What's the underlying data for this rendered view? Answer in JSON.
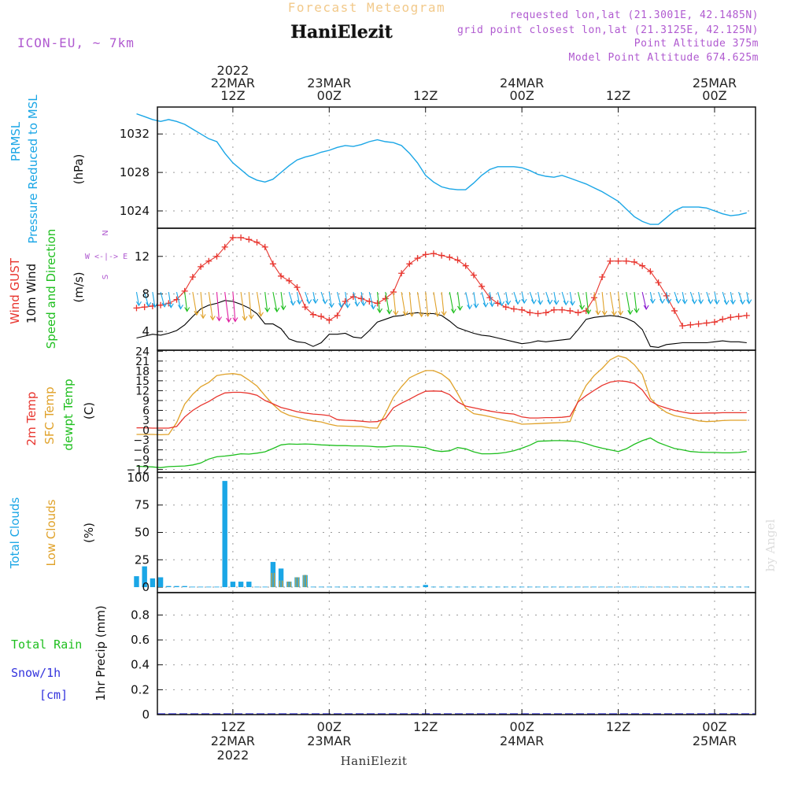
{
  "header": {
    "title_top": "Forecast Meteogram",
    "location": "HaniElezit",
    "model": "ICON-EU, ~ 7km",
    "requested": "requested lon,lat (21.3001E, 42.1485N)",
    "grid_point": "grid point closest lon,lat (21.3125E, 42.125N)",
    "point_altitude": "Point Altitude 375m",
    "model_altitude": "Model Point Altitude 674.625m"
  },
  "time_axis": {
    "top_labels": [
      {
        "t": 12,
        "lines": [
          "2022",
          "22MAR",
          "12Z"
        ]
      },
      {
        "t": 24,
        "lines": [
          "23MAR",
          "00Z"
        ]
      },
      {
        "t": 36,
        "lines": [
          "12Z"
        ]
      },
      {
        "t": 48,
        "lines": [
          "24MAR",
          "00Z"
        ]
      },
      {
        "t": 60,
        "lines": [
          "12Z"
        ]
      },
      {
        "t": 72,
        "lines": [
          "25MAR",
          "00Z"
        ]
      }
    ],
    "bottom_labels": [
      {
        "t": 12,
        "lines": [
          "12Z",
          "22MAR",
          "2022"
        ]
      },
      {
        "t": 24,
        "lines": [
          "00Z",
          "23MAR"
        ]
      },
      {
        "t": 36,
        "lines": [
          "12Z"
        ]
      },
      {
        "t": 48,
        "lines": [
          "00Z",
          "24MAR"
        ]
      },
      {
        "t": 60,
        "lines": [
          "12Z"
        ]
      },
      {
        "t": 72,
        "lines": [
          "00Z",
          "25MAR"
        ]
      }
    ],
    "footer_location": "HaniElezit",
    "credit": "by Angel"
  },
  "colors": {
    "pressure": "#1aa6e6",
    "gust": "#e8352e",
    "wind": "#000000",
    "temp2m": "#e8352e",
    "sfc": "#e0a22a",
    "dewpt": "#1fbf1f",
    "total_cloud": "#1aa6e6",
    "low_cloud": "#e0a22a",
    "rain": "#1fbf1f",
    "snow": "#3333dd",
    "header_purple": "#b05ad0",
    "title_orange": "#f2c98a"
  },
  "panel_labels": {
    "pressure": {
      "lines": [
        "PRMSL",
        "Pressure Reduced to MSL"
      ],
      "unit": "(hPa)"
    },
    "wind": {
      "gust": "Wind GUST",
      "wind": "10m Wind",
      "speed": "Speed and Direction",
      "unit": "(m/s)",
      "compass_ns": "N",
      "compass_s": "S",
      "compass_we": "W <-|-> E"
    },
    "temp": {
      "t2m": "2m Temp",
      "sfc": "SFC Temp",
      "dewpt": "dewpt Temp",
      "unit": "(C)"
    },
    "cloud": {
      "total": "Total Clouds",
      "low": "Low Clouds",
      "unit": "(%)"
    },
    "precip": {
      "rain": "Total Rain",
      "snow": "Snow/1h",
      "snow_unit": "[cm]",
      "axis": "1hr Precip (mm)"
    }
  },
  "chart_data": [
    {
      "type": "line",
      "title": "PRMSL Pressure Reduced to MSL",
      "ylabel": "hPa",
      "ylim": [
        1022.2,
        1034.8
      ],
      "yticks": [
        1024,
        1028,
        1032
      ],
      "x_hours": [
        0,
        1,
        2,
        3,
        4,
        5,
        6,
        7,
        8,
        9,
        10,
        11,
        12,
        13,
        14,
        15,
        16,
        17,
        18,
        19,
        20,
        21,
        22,
        23,
        24,
        25,
        26,
        27,
        28,
        29,
        30,
        31,
        32,
        33,
        34,
        35,
        36,
        37,
        38,
        39,
        40,
        41,
        42,
        43,
        44,
        45,
        46,
        47,
        48,
        49,
        50,
        51,
        52,
        53,
        54,
        55,
        56,
        57,
        58,
        59,
        60,
        61,
        62,
        63,
        64,
        65,
        66,
        67,
        68,
        69,
        70,
        71,
        72,
        73,
        74,
        75,
        76
      ],
      "values": [
        1034.1,
        1033.8,
        1033.5,
        1033.3,
        1033.5,
        1033.3,
        1033.0,
        1032.5,
        1032.0,
        1031.5,
        1031.2,
        1030.0,
        1029.0,
        1028.3,
        1027.6,
        1027.2,
        1027.0,
        1027.3,
        1028.0,
        1028.7,
        1029.3,
        1029.6,
        1029.8,
        1030.1,
        1030.3,
        1030.6,
        1030.8,
        1030.7,
        1030.9,
        1031.2,
        1031.4,
        1031.2,
        1031.1,
        1030.8,
        1030.0,
        1029.0,
        1027.7,
        1027.0,
        1026.5,
        1026.3,
        1026.2,
        1026.2,
        1026.9,
        1027.7,
        1028.3,
        1028.6,
        1028.6,
        1028.6,
        1028.5,
        1028.2,
        1027.8,
        1027.6,
        1027.5,
        1027.7,
        1027.4,
        1027.1,
        1026.8,
        1026.4,
        1026.0,
        1025.5,
        1025.0,
        1024.2,
        1023.4,
        1022.9,
        1022.6,
        1022.6,
        1023.3,
        1024.0,
        1024.4,
        1024.4,
        1024.4,
        1024.3,
        1024.0,
        1023.7,
        1023.5,
        1023.6,
        1023.8
      ]
    },
    {
      "type": "line",
      "title": "Wind GUST and 10m Wind Speed and Direction",
      "ylabel": "m/s",
      "ylim": [
        2,
        15
      ],
      "yticks": [
        4,
        8,
        12
      ],
      "x_hours": [
        0,
        1,
        2,
        3,
        4,
        5,
        6,
        7,
        8,
        9,
        10,
        11,
        12,
        13,
        14,
        15,
        16,
        17,
        18,
        19,
        20,
        21,
        22,
        23,
        24,
        25,
        26,
        27,
        28,
        29,
        30,
        31,
        32,
        33,
        34,
        35,
        36,
        37,
        38,
        39,
        40,
        41,
        42,
        43,
        44,
        45,
        46,
        47,
        48,
        49,
        50,
        51,
        52,
        53,
        54,
        55,
        56,
        57,
        58,
        59,
        60,
        61,
        62,
        63,
        64,
        65,
        66,
        67,
        68,
        69,
        70,
        71,
        72,
        73,
        74,
        75,
        76
      ],
      "series": [
        {
          "name": "Wind GUST",
          "values": [
            6.5,
            6.6,
            6.7,
            6.8,
            7.0,
            7.4,
            8.3,
            9.8,
            10.9,
            11.5,
            12.0,
            13.0,
            14.0,
            14.0,
            13.8,
            13.5,
            13.0,
            11.2,
            9.9,
            9.4,
            8.7,
            6.6,
            5.8,
            5.6,
            5.2,
            5.7,
            7.2,
            7.7,
            7.5,
            7.2,
            7.0,
            7.5,
            8.2,
            10.2,
            11.2,
            11.8,
            12.2,
            12.3,
            12.1,
            11.9,
            11.6,
            11.0,
            10.0,
            8.8,
            7.6,
            7.0,
            6.6,
            6.4,
            6.3,
            6.0,
            5.9,
            6.0,
            6.3,
            6.3,
            6.2,
            6.0,
            6.2,
            7.6,
            9.8,
            11.5,
            11.5,
            11.5,
            11.4,
            11.0,
            10.4,
            9.2,
            7.8,
            6.2,
            4.6,
            4.7,
            4.8,
            4.9,
            5.0,
            5.3,
            5.5,
            5.6,
            5.7
          ]
        },
        {
          "name": "10m Wind",
          "values": [
            3.3,
            3.5,
            3.7,
            3.6,
            3.8,
            4.1,
            4.7,
            5.6,
            6.4,
            6.8,
            7.0,
            7.3,
            7.2,
            6.9,
            6.5,
            5.9,
            4.8,
            4.8,
            4.3,
            3.2,
            2.9,
            2.8,
            2.4,
            2.8,
            3.7,
            3.7,
            3.8,
            3.4,
            3.3,
            4.1,
            5.0,
            5.3,
            5.6,
            5.7,
            5.9,
            6.0,
            5.9,
            5.9,
            5.7,
            5.1,
            4.4,
            4.1,
            3.8,
            3.6,
            3.5,
            3.3,
            3.1,
            2.9,
            2.7,
            2.8,
            3.0,
            2.9,
            3.0,
            3.1,
            3.2,
            4.2,
            5.3,
            5.5,
            5.6,
            5.7,
            5.6,
            5.4,
            5.0,
            4.2,
            2.4,
            2.3,
            2.6,
            2.7,
            2.8,
            2.8,
            2.8,
            2.8,
            2.9,
            3.0,
            2.9,
            2.9,
            2.8
          ]
        }
      ],
      "wind_barbs": [
        {
          "color": "#1aa6e6",
          "count": 18
        },
        {
          "color": "#1fbf1f",
          "count": 10
        },
        {
          "color": "#e0a22a",
          "count": 6
        },
        {
          "color": "#e01ea0",
          "count": 2
        },
        {
          "color": "#8a1ad0",
          "count": 1
        }
      ]
    },
    {
      "type": "line",
      "title": "2m Temp, SFC Temp, dewpt Temp",
      "ylabel": "C",
      "ylim": [
        -12.8,
        24.3
      ],
      "yticks": [
        -12,
        -9,
        -6,
        -3,
        0,
        3,
        6,
        9,
        12,
        15,
        18,
        21,
        24
      ],
      "x_hours": [
        0,
        1,
        2,
        3,
        4,
        5,
        6,
        7,
        8,
        9,
        10,
        11,
        12,
        13,
        14,
        15,
        16,
        17,
        18,
        19,
        20,
        21,
        22,
        23,
        24,
        25,
        26,
        27,
        28,
        29,
        30,
        31,
        32,
        33,
        34,
        35,
        36,
        37,
        38,
        39,
        40,
        41,
        42,
        43,
        44,
        45,
        46,
        47,
        48,
        49,
        50,
        51,
        52,
        53,
        54,
        55,
        56,
        57,
        58,
        59,
        60,
        61,
        62,
        63,
        64,
        65,
        66,
        67,
        68,
        69,
        70,
        71,
        72,
        73,
        74,
        75,
        76
      ],
      "series": [
        {
          "name": "2m Temp",
          "values": [
            0.7,
            0.7,
            0.6,
            0.6,
            0.6,
            1.1,
            4.0,
            6.0,
            7.5,
            8.7,
            10.2,
            11.3,
            11.5,
            11.5,
            11.2,
            10.6,
            9.0,
            8.0,
            6.9,
            6.3,
            5.6,
            5.2,
            4.9,
            4.7,
            4.4,
            3.2,
            3.0,
            2.9,
            2.7,
            2.5,
            2.6,
            3.5,
            6.8,
            8.2,
            9.4,
            10.7,
            11.8,
            11.9,
            11.8,
            10.8,
            8.6,
            7.3,
            6.8,
            6.3,
            5.8,
            5.4,
            5.1,
            4.9,
            4.0,
            3.7,
            3.7,
            3.8,
            3.8,
            3.9,
            4.2,
            8.6,
            10.5,
            12.1,
            13.6,
            14.6,
            15.0,
            14.8,
            14.2,
            12.2,
            8.8,
            7.5,
            6.7,
            6.0,
            5.5,
            5.1,
            5.1,
            5.2,
            5.2,
            5.3,
            5.3,
            5.3,
            5.3
          ]
        },
        {
          "name": "SFC Temp",
          "values": [
            -1.3,
            -1.3,
            -1.3,
            -1.4,
            -1.3,
            2.3,
            7.9,
            10.9,
            13.2,
            14.5,
            16.6,
            17.0,
            17.2,
            16.8,
            15.2,
            13.4,
            10.5,
            7.8,
            5.6,
            4.5,
            3.9,
            3.3,
            2.8,
            2.5,
            1.8,
            1.3,
            1.2,
            1.1,
            1.1,
            0.7,
            0.6,
            5.0,
            10.0,
            13.2,
            15.9,
            17.1,
            18.1,
            18.1,
            17.1,
            15.2,
            11.1,
            6.7,
            5.0,
            4.6,
            4.1,
            3.5,
            2.9,
            2.5,
            1.8,
            1.9,
            2.0,
            2.1,
            2.2,
            2.3,
            2.6,
            8.9,
            13.6,
            16.6,
            18.8,
            21.4,
            22.6,
            21.9,
            19.9,
            16.9,
            9.7,
            7.1,
            5.4,
            4.4,
            3.9,
            3.4,
            2.8,
            2.6,
            2.7,
            2.9,
            3.0,
            3.0,
            3.0
          ]
        },
        {
          "name": "dewpt Temp",
          "values": [
            -11.0,
            -11.1,
            -11.2,
            -11.4,
            -11.1,
            -11.0,
            -10.9,
            -10.6,
            -10.0,
            -8.8,
            -8.1,
            -7.9,
            -7.6,
            -7.2,
            -7.3,
            -7.0,
            -6.6,
            -5.6,
            -4.5,
            -4.2,
            -4.3,
            -4.2,
            -4.3,
            -4.5,
            -4.6,
            -4.7,
            -4.7,
            -4.8,
            -4.8,
            -4.9,
            -5.1,
            -5.1,
            -4.8,
            -4.8,
            -4.9,
            -5.1,
            -5.3,
            -6.2,
            -6.5,
            -6.3,
            -5.3,
            -5.7,
            -6.6,
            -7.2,
            -7.2,
            -7.1,
            -6.8,
            -6.3,
            -5.5,
            -4.6,
            -3.4,
            -3.3,
            -3.2,
            -3.2,
            -3.3,
            -3.5,
            -4.1,
            -4.9,
            -5.5,
            -6.0,
            -6.5,
            -5.7,
            -4.3,
            -3.2,
            -2.4,
            -3.8,
            -4.7,
            -5.6,
            -6.0,
            -6.5,
            -6.7,
            -6.8,
            -6.8,
            -6.9,
            -6.9,
            -6.8,
            -6.5
          ]
        }
      ]
    },
    {
      "type": "bar",
      "title": "Total Clouds, Low Clouds",
      "ylabel": "%",
      "ylim": [
        -5,
        105
      ],
      "yticks": [
        0,
        25,
        50,
        75,
        100
      ],
      "x_hours": [
        0,
        1,
        2,
        3,
        4,
        5,
        6,
        7,
        8,
        9,
        10,
        11,
        12,
        13,
        14,
        15,
        16,
        17,
        18,
        19,
        20,
        21,
        22,
        23,
        24,
        25,
        26,
        27,
        28,
        29,
        30,
        31,
        32,
        33,
        34,
        35,
        36,
        37,
        38,
        39,
        40,
        41,
        42,
        43,
        44,
        45,
        46,
        47,
        48,
        49,
        50,
        51,
        52,
        53,
        54,
        55,
        56,
        57,
        58,
        59,
        60,
        61,
        62,
        63,
        64,
        65,
        66,
        67,
        68,
        69,
        70,
        71,
        72,
        73,
        74,
        75,
        76
      ],
      "series": [
        {
          "name": "Total Clouds",
          "values": [
            10,
            19,
            8,
            9,
            1,
            1,
            1,
            0,
            0,
            0,
            0,
            97,
            5,
            5,
            5,
            0,
            0,
            23,
            17,
            5,
            9,
            11,
            0,
            0,
            0,
            0,
            0,
            0,
            0,
            0,
            0,
            0,
            0,
            0,
            0,
            0,
            2,
            0,
            0,
            0,
            0,
            0,
            0,
            0,
            0,
            0,
            0,
            0,
            0,
            0,
            0,
            0,
            0,
            0,
            0,
            0,
            0,
            0,
            0,
            0,
            0,
            0,
            0,
            0,
            0,
            0,
            0,
            0,
            0,
            0,
            0,
            0,
            0,
            0,
            0,
            0,
            0
          ]
        },
        {
          "name": "Low Clouds",
          "values": [
            0,
            0,
            0,
            0,
            0,
            0,
            0,
            0,
            0,
            0,
            0,
            0,
            0,
            0,
            0,
            0,
            0,
            13,
            6,
            5,
            9,
            11,
            0,
            0,
            0,
            0,
            0,
            0,
            0,
            0,
            0,
            0,
            0,
            0,
            0,
            0,
            0,
            0,
            0,
            0,
            0,
            0,
            0,
            0,
            0,
            0,
            0,
            0,
            0,
            0,
            0,
            0,
            0,
            0,
            0,
            0,
            0,
            0,
            0,
            0,
            0,
            0,
            0,
            0,
            0,
            0,
            0,
            0,
            0,
            0,
            0,
            0,
            0,
            0,
            0,
            0,
            0
          ]
        }
      ]
    },
    {
      "type": "bar",
      "title": "1hr Precip",
      "ylabel": "1hr Precip (mm)",
      "ylim": [
        0,
        0.98
      ],
      "yticks": [
        0,
        0.2,
        0.4,
        0.6,
        0.8
      ],
      "ytick_labels": [
        "0",
        "0.2",
        "0.4",
        "0.6",
        "0.8"
      ],
      "series": [
        {
          "name": "Total Rain",
          "values": [
            0
          ]
        },
        {
          "name": "Snow/1h",
          "values": [
            0
          ]
        }
      ]
    }
  ]
}
